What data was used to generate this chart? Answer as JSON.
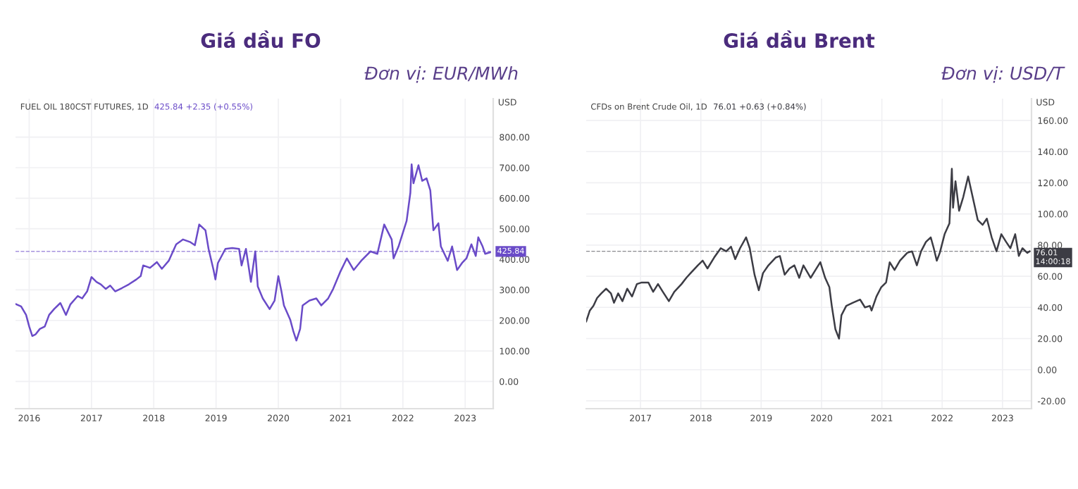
{
  "chart_data": [
    {
      "type": "line",
      "title": "Giá dầu FO",
      "subtitle": "Đơn vị: EUR/MWh",
      "ylabel": "USD",
      "annotations": [
        "FUEL OIL 180CST FUTURES, 1D",
        "425.84 +2.35 (+0.55%)"
      ],
      "x": [
        2015.78,
        2015.87,
        2015.95,
        2016.0,
        2016.05,
        2016.1,
        2016.17,
        2016.25,
        2016.32,
        2016.4,
        2016.5,
        2016.59,
        2016.66,
        2016.78,
        2016.85,
        2016.93,
        2017.0,
        2017.08,
        2017.15,
        2017.23,
        2017.3,
        2017.38,
        2017.49,
        2017.6,
        2017.72,
        2017.79,
        2017.83,
        2017.94,
        2018.05,
        2018.13,
        2018.24,
        2018.36,
        2018.47,
        2018.58,
        2018.66,
        2018.73,
        2018.83,
        2018.88,
        2018.96,
        2018.99,
        2019.03,
        2019.15,
        2019.26,
        2019.37,
        2019.41,
        2019.48,
        2019.56,
        2019.63,
        2019.67,
        2019.75,
        2019.86,
        2019.94,
        2020.0,
        2020.05,
        2020.09,
        2020.19,
        2020.24,
        2020.29,
        2020.35,
        2020.39,
        2020.5,
        2020.61,
        2020.69,
        2020.8,
        2020.88,
        2020.99,
        2021.1,
        2021.21,
        2021.33,
        2021.48,
        2021.59,
        2021.7,
        2021.82,
        2021.85,
        2021.93,
        2022.06,
        2022.12,
        2022.14,
        2022.17,
        2022.25,
        2022.31,
        2022.38,
        2022.44,
        2022.49,
        2022.57,
        2022.61,
        2022.72,
        2022.79,
        2022.87,
        2022.95,
        2023.02,
        2023.1,
        2023.17,
        2023.21,
        2023.28,
        2023.32,
        2023.4
      ],
      "series": [
        {
          "color": "#6a4bc8",
          "values": [
            254,
            246,
            218,
            180,
            149,
            154,
            172,
            180,
            218,
            237,
            257,
            218,
            252,
            280,
            272,
            295,
            342,
            326,
            318,
            303,
            314,
            295,
            306,
            318,
            334,
            345,
            380,
            372,
            391,
            369,
            395,
            449,
            465,
            457,
            446,
            514,
            495,
            434,
            365,
            334,
            388,
            434,
            437,
            434,
            380,
            434,
            326,
            426,
            311,
            272,
            237,
            265,
            345,
            295,
            249,
            203,
            165,
            134,
            172,
            249,
            265,
            272,
            249,
            272,
            303,
            357,
            403,
            365,
            395,
            426,
            418,
            514,
            465,
            403,
            442,
            526,
            618,
            711,
            649,
            708,
            657,
            665,
            626,
            495,
            518,
            442,
            395,
            442,
            365,
            388,
            403,
            449,
            411,
            472,
            442,
            418,
            423
          ]
        }
      ],
      "xlim": [
        2015.78,
        2023.45
      ],
      "xticks": [
        2016,
        2017,
        2018,
        2019,
        2020,
        2021,
        2022,
        2023
      ],
      "ylim": [
        -89,
        926
      ],
      "yticks": [
        {
          "value": 0,
          "label": "0.00"
        },
        {
          "value": 100,
          "label": "100.00"
        },
        {
          "value": 200,
          "label": "200.00"
        },
        {
          "value": 300,
          "label": "300.00"
        },
        {
          "value": 400,
          "label": "400.00"
        },
        {
          "value": 500,
          "label": "500.00"
        },
        {
          "value": 600,
          "label": "600.00"
        },
        {
          "value": 700,
          "label": "700.00"
        },
        {
          "value": 800,
          "label": "800.00"
        }
      ],
      "ref_lines": [
        {
          "axis": "y",
          "value": 425.84,
          "label": "425.84",
          "color": "#6a4bc8",
          "line_style": "dashed"
        }
      ],
      "grid": true
    },
    {
      "type": "line",
      "title": "Giá dầu Brent",
      "subtitle": "Đơn vị: USD/T",
      "ylabel": "USD",
      "annotations": [
        "CFDs on Brent Crude Oil, 1D",
        "76.01 +0.63 (+0.84%)"
      ],
      "x": [
        2016.1,
        2016.16,
        2016.22,
        2016.28,
        2016.35,
        2016.43,
        2016.51,
        2016.56,
        2016.63,
        2016.7,
        2016.78,
        2016.86,
        2016.94,
        2017.02,
        2017.13,
        2017.21,
        2017.29,
        2017.37,
        2017.47,
        2017.56,
        2017.68,
        2017.76,
        2017.83,
        2017.95,
        2018.03,
        2018.11,
        2018.22,
        2018.33,
        2018.42,
        2018.5,
        2018.57,
        2018.65,
        2018.75,
        2018.81,
        2018.89,
        2018.96,
        2019.03,
        2019.12,
        2019.24,
        2019.31,
        2019.39,
        2019.47,
        2019.55,
        2019.63,
        2019.7,
        2019.82,
        2019.9,
        2019.98,
        2020.06,
        2020.13,
        2020.17,
        2020.23,
        2020.29,
        2020.33,
        2020.41,
        2020.52,
        2020.64,
        2020.72,
        2020.8,
        2020.83,
        2020.91,
        2020.99,
        2021.07,
        2021.13,
        2021.21,
        2021.3,
        2021.42,
        2021.5,
        2021.58,
        2021.65,
        2021.73,
        2021.81,
        2021.86,
        2021.91,
        2021.96,
        2022.04,
        2022.12,
        2022.16,
        2022.18,
        2022.22,
        2022.28,
        2022.35,
        2022.43,
        2022.51,
        2022.59,
        2022.67,
        2022.74,
        2022.82,
        2022.9,
        2022.98,
        2023.06,
        2023.13,
        2023.21,
        2023.27,
        2023.33,
        2023.41,
        2023.45
      ],
      "series": [
        {
          "color": "#3c3c44",
          "values": [
            31,
            38,
            41,
            46,
            49,
            52,
            49,
            43,
            49,
            44,
            52,
            47,
            55,
            56,
            56,
            50,
            55,
            50,
            44,
            50,
            55,
            59,
            62,
            67,
            70,
            65,
            72,
            78,
            76,
            79,
            71,
            78,
            85,
            78,
            61,
            51,
            62,
            67,
            72,
            73,
            61,
            65,
            67,
            59,
            67,
            59,
            64,
            69,
            59,
            53,
            41,
            26,
            20,
            35,
            41,
            43,
            45,
            40,
            41,
            38,
            47,
            53,
            56,
            69,
            64,
            70,
            75,
            76,
            67,
            76,
            82,
            85,
            78,
            70,
            75,
            87,
            94,
            129,
            104,
            121,
            102,
            111,
            124,
            110,
            96,
            93,
            97,
            85,
            76,
            87,
            82,
            78,
            87,
            73,
            78,
            75,
            76
          ]
        }
      ],
      "xlim": [
        2016.1,
        2023.48
      ],
      "xticks": [
        2017,
        2018,
        2019,
        2020,
        2021,
        2022,
        2023
      ],
      "ylim": [
        -25,
        174
      ],
      "yticks": [
        {
          "value": -20,
          "label": "-20.00"
        },
        {
          "value": 0,
          "label": "0.00"
        },
        {
          "value": 20,
          "label": "20.00"
        },
        {
          "value": 40,
          "label": "40.00"
        },
        {
          "value": 60,
          "label": "60.00"
        },
        {
          "value": 80,
          "label": "80.00"
        },
        {
          "value": 100,
          "label": "100.00"
        },
        {
          "value": 120,
          "label": "120.00"
        },
        {
          "value": 140,
          "label": "140.00"
        },
        {
          "value": 160,
          "label": "160.00"
        }
      ],
      "ref_lines": [
        {
          "axis": "y",
          "value": 76.01,
          "label": "76.01\n14:00:18",
          "color": "#3c3c44",
          "line_style": "dashed"
        }
      ],
      "grid": true
    }
  ]
}
